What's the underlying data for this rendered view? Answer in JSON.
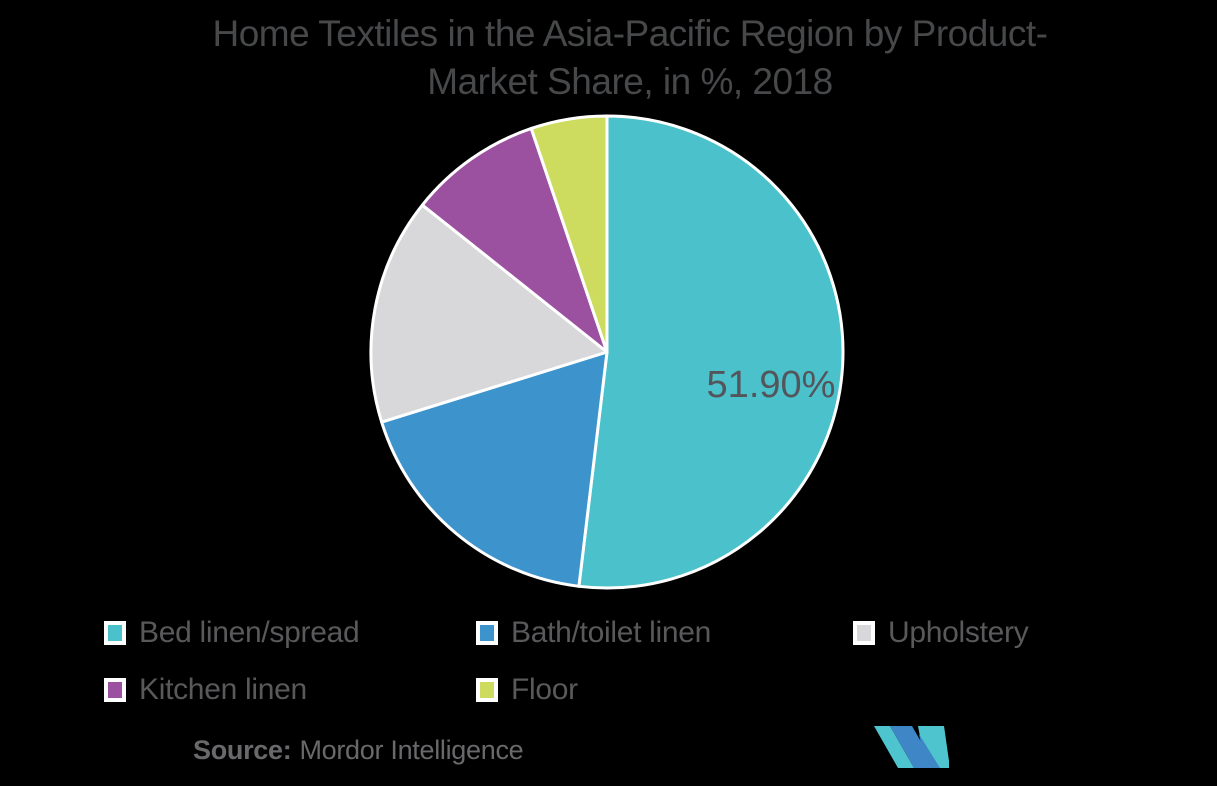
{
  "title": {
    "line1": "Home Textiles in the Asia-Pacific Region by Product-",
    "line2": "Market Share, in %, 2018"
  },
  "chart_data": {
    "type": "pie",
    "title": "Home Textiles in the Asia-Pacific Region by Product- Market Share, in %, 2018",
    "unit": "%",
    "start_angle_deg": 0,
    "direction": "clockwise",
    "legend_position": "bottom",
    "slices": [
      {
        "label": "Bed linen/spread",
        "value": 51.9,
        "display_label": "51.90%",
        "color": "#4BC2CB"
      },
      {
        "label": "Bath/toilet linen",
        "value": 18.3,
        "display_label": "",
        "color": "#3D93CB"
      },
      {
        "label": "Upholstery",
        "value": 15.5,
        "display_label": "",
        "color": "#D8D8DA"
      },
      {
        "label": "Kitchen linen",
        "value": 9.1,
        "display_label": "",
        "color": "#9C50A0"
      },
      {
        "label": "Floor",
        "value": 5.2,
        "display_label": "",
        "color": "#CDDC5F"
      }
    ]
  },
  "colors": {
    "background": "#000000",
    "title_text": "#47484A",
    "legend_text": "#59595B",
    "value_label_text": "#54555A",
    "source_text": "#69696B",
    "slice_divider": "#FFFFFF",
    "logo_teal": "#4EC5CE",
    "logo_blue": "#3E86C6"
  },
  "source": {
    "prefix": "Source:",
    "text": "Mordor Intelligence"
  },
  "logo": {
    "name": "mordor-intelligence-logo"
  }
}
